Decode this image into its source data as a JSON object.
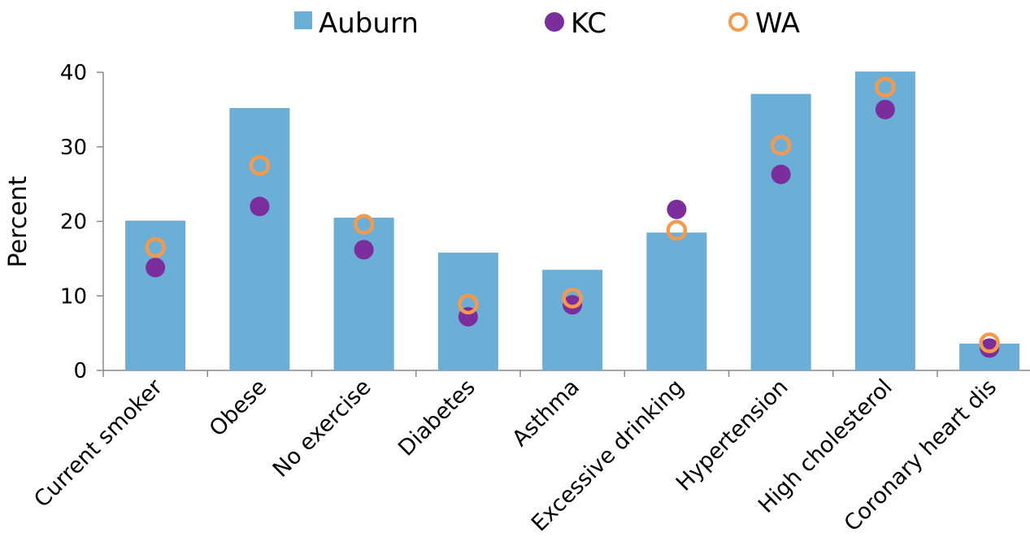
{
  "chart_data": {
    "type": "bar",
    "title": "",
    "xlabel": "",
    "ylabel": "Percent",
    "ylim": [
      0,
      40
    ],
    "yticks": [
      0,
      10,
      20,
      30,
      40
    ],
    "categories": [
      "Current smoker",
      "Obese",
      "No exercise",
      "Diabetes",
      "Asthma",
      "Excessive drinking",
      "Hypertension",
      "High cholesterol",
      "Coronary heart dis"
    ],
    "series": [
      {
        "name": "Auburn",
        "type": "bar",
        "color": "#6BAED6",
        "values": [
          20.1,
          35.2,
          20.5,
          15.8,
          13.5,
          18.5,
          37.1,
          40.1,
          3.6
        ]
      },
      {
        "name": "KC",
        "type": "marker-filled",
        "color": "#7B2D9B",
        "values": [
          13.8,
          22.0,
          16.2,
          7.2,
          8.8,
          21.6,
          26.3,
          35.0,
          3.0
        ]
      },
      {
        "name": "WA",
        "type": "marker-open",
        "color": "#F7994A",
        "values": [
          16.5,
          27.5,
          19.6,
          8.9,
          9.7,
          18.8,
          30.2,
          38.0,
          3.7
        ]
      }
    ],
    "legend_position": "top-center",
    "grid": false
  }
}
